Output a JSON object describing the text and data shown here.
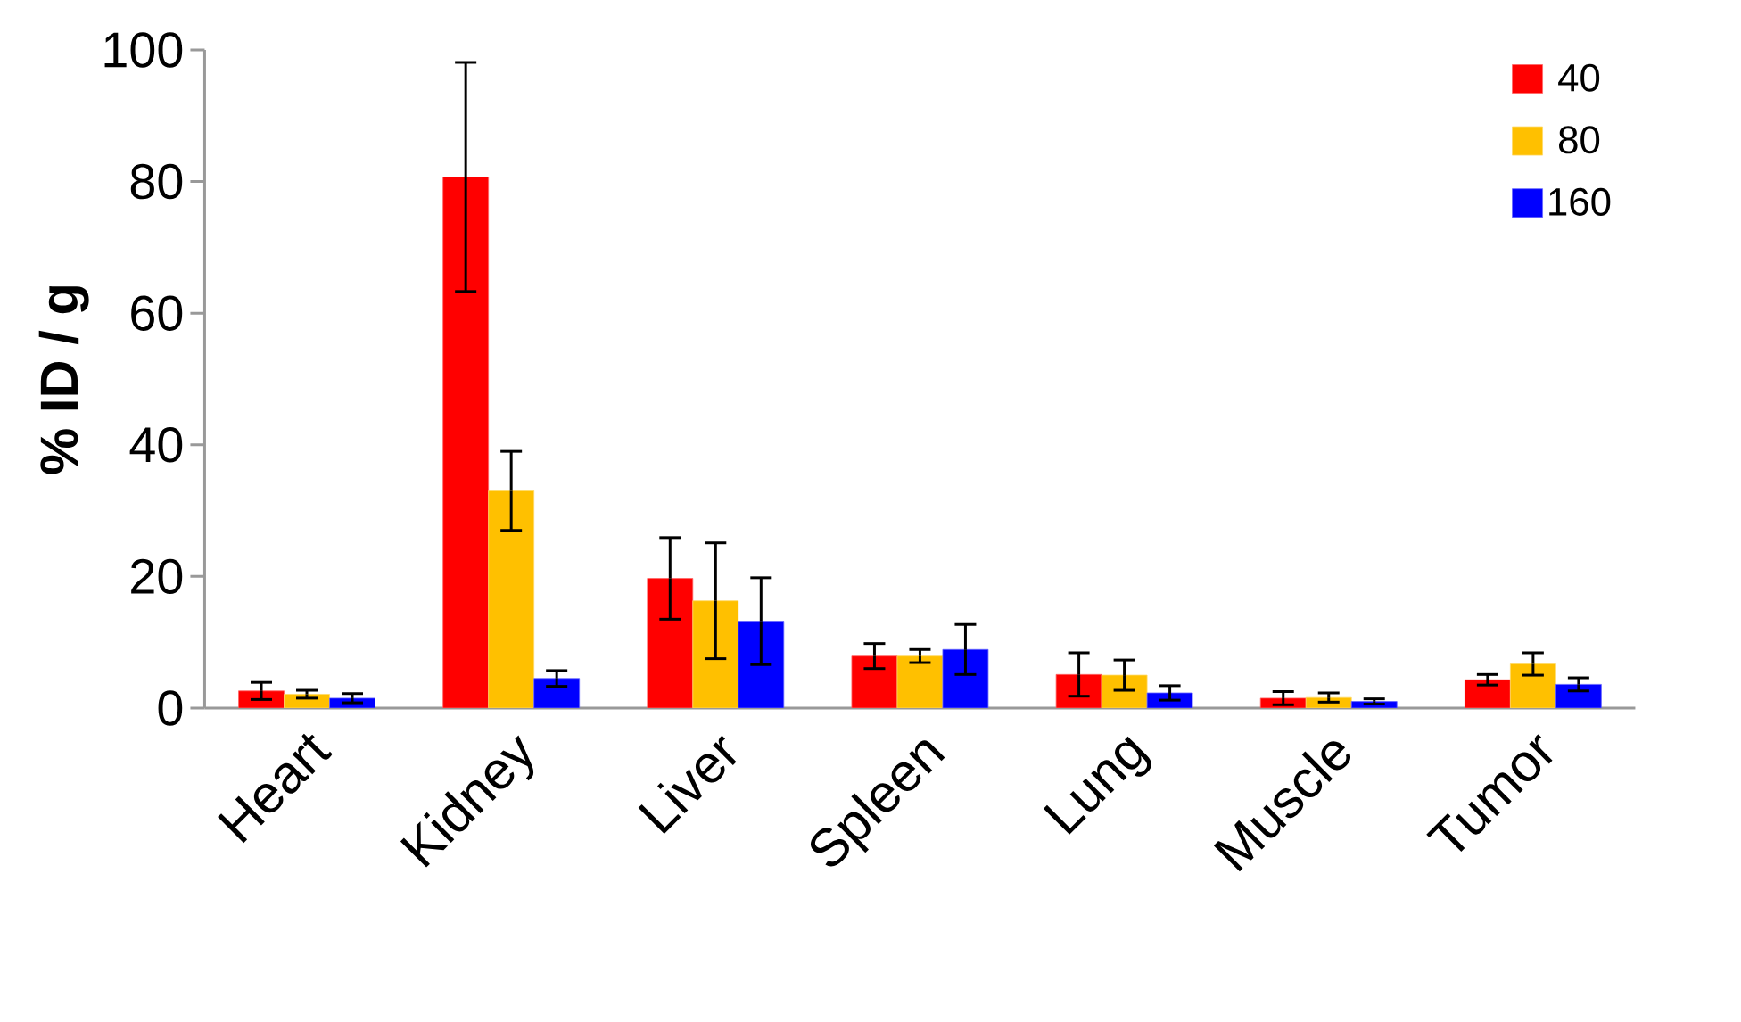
{
  "chart_data": {
    "type": "bar",
    "ylabel": "% ID / g",
    "categories": [
      "Heart",
      "Kidney",
      "Liver",
      "Spleen",
      "Lung",
      "Muscle",
      "Tumor"
    ],
    "series": [
      {
        "name": "40",
        "color": "#ff0000",
        "values": [
          2.6,
          80.7,
          19.7,
          7.9,
          5.1,
          1.5,
          4.3
        ],
        "errors": [
          1.3,
          17.4,
          6.2,
          1.9,
          3.3,
          1.0,
          0.8
        ]
      },
      {
        "name": "80",
        "color": "#ffc000",
        "values": [
          2.1,
          33.0,
          16.3,
          7.9,
          5.0,
          1.6,
          6.7
        ],
        "errors": [
          0.6,
          6.0,
          8.8,
          1.0,
          2.3,
          0.7,
          1.7
        ]
      },
      {
        "name": "160",
        "color": "#0000ff",
        "values": [
          1.5,
          4.5,
          13.2,
          8.9,
          2.3,
          1.0,
          3.6
        ],
        "errors": [
          0.7,
          1.2,
          6.6,
          3.8,
          1.1,
          0.4,
          1.0
        ]
      }
    ],
    "ylim": [
      0,
      100
    ],
    "yticks": [
      0,
      20,
      40,
      60,
      80,
      100
    ],
    "grid": false,
    "legend": "top right"
  }
}
